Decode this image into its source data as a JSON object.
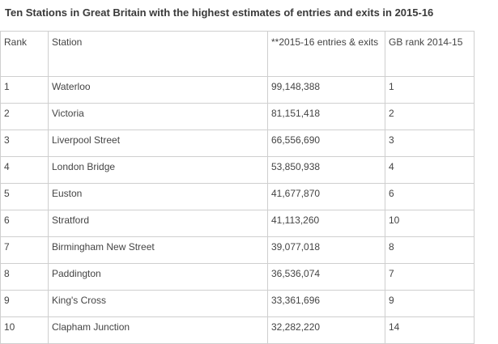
{
  "title": "Ten Stations in Great Britain with the highest estimates of entries and exits in 2015-16",
  "columns": [
    "Rank",
    "Station",
    "**2015-16 entries & exits",
    "GB rank 2014-15"
  ],
  "rows": [
    {
      "rank": "1",
      "station": "Waterloo",
      "entries_exits": "99,148,388",
      "gb_rank_2014_15": "1"
    },
    {
      "rank": "2",
      "station": "Victoria",
      "entries_exits": "81,151,418",
      "gb_rank_2014_15": "2"
    },
    {
      "rank": "3",
      "station": "Liverpool Street",
      "entries_exits": "66,556,690",
      "gb_rank_2014_15": "3"
    },
    {
      "rank": "4",
      "station": "London Bridge",
      "entries_exits": "53,850,938",
      "gb_rank_2014_15": "4"
    },
    {
      "rank": "5",
      "station": "Euston",
      "entries_exits": "41,677,870",
      "gb_rank_2014_15": "6"
    },
    {
      "rank": "6",
      "station": "Stratford",
      "entries_exits": "41,113,260",
      "gb_rank_2014_15": "10"
    },
    {
      "rank": "7",
      "station": "Birmingham New Street",
      "entries_exits": "39,077,018",
      "gb_rank_2014_15": "8"
    },
    {
      "rank": "8",
      "station": "Paddington",
      "entries_exits": "36,536,074",
      "gb_rank_2014_15": "7"
    },
    {
      "rank": "9",
      "station": "King's Cross",
      "entries_exits": "33,361,696",
      "gb_rank_2014_15": "9"
    },
    {
      "rank": "10",
      "station": "Clapham Junction",
      "entries_exits": "32,282,220",
      "gb_rank_2014_15": "14"
    }
  ]
}
